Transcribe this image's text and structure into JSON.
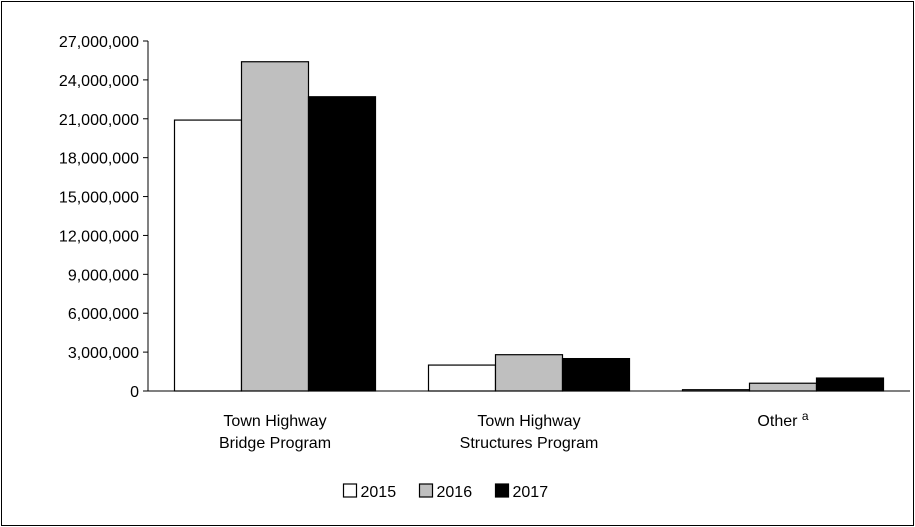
{
  "chart_data": {
    "type": "bar",
    "title": "",
    "xlabel": "",
    "ylabel": "",
    "categories": [
      [
        "Town Highway",
        "Bridge Program"
      ],
      [
        "Town Highway",
        "Structures Program"
      ],
      [
        "Other",
        "a"
      ]
    ],
    "series": [
      {
        "name": "2015",
        "color": "#ffffff",
        "values": [
          20900000,
          2000000,
          100000
        ]
      },
      {
        "name": "2016",
        "color": "#bfbfbf",
        "values": [
          25400000,
          2800000,
          600000
        ]
      },
      {
        "name": "2017",
        "color": "#000000",
        "values": [
          22700000,
          2500000,
          1000000
        ]
      }
    ],
    "ylim": [
      0,
      27000000
    ],
    "yticks": [
      0,
      3000000,
      6000000,
      9000000,
      12000000,
      15000000,
      18000000,
      21000000,
      24000000,
      27000000
    ],
    "ytick_labels": [
      "0",
      "3,000,000",
      "6,000,000",
      "9,000,000",
      "12,000,000",
      "15,000,000",
      "18,000,000",
      "21,000,000",
      "24,000,000",
      "27,000,000"
    ],
    "grid": false,
    "legend": "bottom-center"
  }
}
